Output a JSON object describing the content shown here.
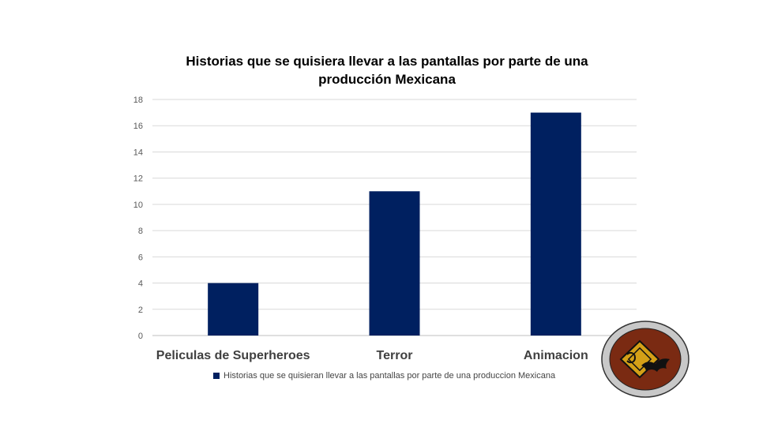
{
  "chart_data": {
    "type": "bar",
    "title": "Historias que se quisiera llevar a las pantallas por parte de una producción  Mexicana",
    "categories": [
      "Peliculas de Superheroes",
      "Terror",
      "Animacion"
    ],
    "series": [
      {
        "name": "Historias que se quisieran llevar a las pantallas por parte de una produccion Mexicana",
        "values": [
          4,
          11,
          17
        ],
        "color": "#002060"
      }
    ],
    "ylim": [
      0,
      18
    ],
    "yticks": [
      0,
      2,
      4,
      6,
      8,
      10,
      12,
      14,
      16,
      18
    ],
    "grid": true,
    "legend": "bottom"
  },
  "logo": {
    "colors": {
      "outer": "#c8c8c8",
      "inner": "#7a2a12",
      "diamond": "#d4a017",
      "bat": "#111111"
    }
  }
}
